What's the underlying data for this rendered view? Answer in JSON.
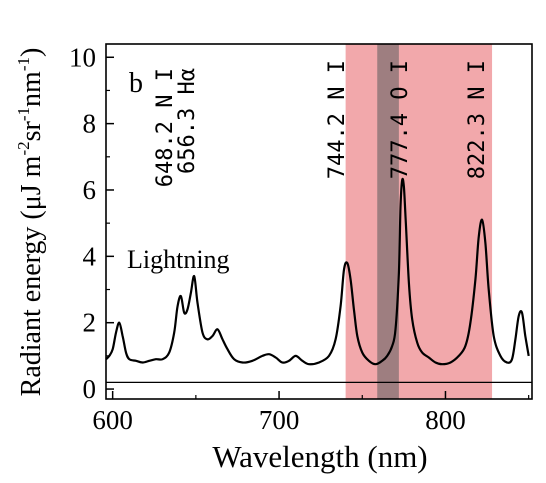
{
  "chart_data": {
    "type": "line",
    "panel_label": "b",
    "xlabel": "Wavelength (nm)",
    "ylabel_parts": [
      "Radiant energy (",
      "μ",
      "J m",
      "-2",
      "sr",
      "-1",
      "nm",
      "-1",
      ")"
    ],
    "xlim": [
      596,
      852
    ],
    "ylim": [
      -0.3,
      10.4
    ],
    "xticks": [
      600,
      700,
      800
    ],
    "yticks": [
      0,
      2,
      4,
      6,
      8,
      10
    ],
    "grid": false,
    "annotation": "Lightning",
    "line_labels": [
      {
        "text": "648.2 N I",
        "x": 648.2
      },
      {
        "text": "656.3 Hα",
        "x": 656.3
      },
      {
        "text": "744.2 N I",
        "x": 744.2
      },
      {
        "text": "777.4 O I",
        "x": 777.4
      },
      {
        "text": "822.3 N I",
        "x": 822.3
      }
    ],
    "bands": [
      {
        "x0": 740,
        "x1": 828,
        "color": "#f2a8ab"
      },
      {
        "x0": 759,
        "x1": 772,
        "color": "#9e7e80"
      }
    ],
    "baseline": 0.2,
    "series": [
      {
        "color": "#000000",
        "x": [
          596,
          598,
          600,
          602,
          604,
          606,
          608,
          610,
          614,
          618,
          622,
          626,
          630,
          634,
          637,
          639,
          641,
          643,
          645,
          647,
          649,
          651,
          654,
          657,
          660,
          663,
          666,
          669,
          673,
          678,
          684,
          690,
          694,
          698,
          702,
          706,
          710,
          714,
          718,
          724,
          730,
          734,
          737,
          739,
          741,
          743,
          745,
          747,
          750,
          754,
          758,
          762,
          765,
          768,
          770,
          772,
          773,
          774,
          775,
          776,
          778,
          780,
          783,
          786,
          790,
          794,
          798,
          803,
          808,
          812,
          815,
          818,
          820,
          822,
          824,
          826,
          829,
          833,
          837,
          840,
          842,
          844,
          846,
          848,
          850
        ],
        "y": [
          0.9,
          1.0,
          1.2,
          1.7,
          2.0,
          1.6,
          1.1,
          0.9,
          0.85,
          0.8,
          0.85,
          0.9,
          0.9,
          1.1,
          1.7,
          2.5,
          2.8,
          2.3,
          2.4,
          2.9,
          3.4,
          2.6,
          1.7,
          1.5,
          1.6,
          1.8,
          1.5,
          1.2,
          0.9,
          0.8,
          0.85,
          1.0,
          1.05,
          0.95,
          0.8,
          0.85,
          1.0,
          0.85,
          0.75,
          0.8,
          1.0,
          1.5,
          2.5,
          3.6,
          3.8,
          3.3,
          2.4,
          1.6,
          1.1,
          0.85,
          0.75,
          0.85,
          1.0,
          1.3,
          1.8,
          3.5,
          5.5,
          6.3,
          6.1,
          5.2,
          3.2,
          2.1,
          1.4,
          1.1,
          0.95,
          0.8,
          0.75,
          0.8,
          1.0,
          1.3,
          2.0,
          3.3,
          4.6,
          5.1,
          4.4,
          3.0,
          1.6,
          1.0,
          0.8,
          0.9,
          1.5,
          2.2,
          2.3,
          1.6,
          1.0
        ]
      }
    ]
  }
}
